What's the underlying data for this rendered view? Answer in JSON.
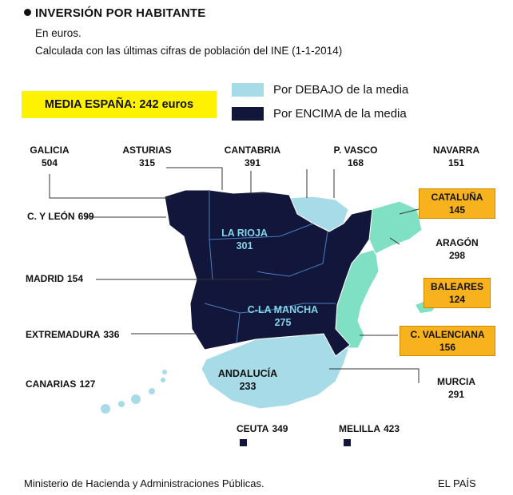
{
  "title": "INVERSIÓN POR HABITANTE",
  "subtitle1": "En euros.",
  "subtitle2": "Calculada con las últimas cifras de población del INE (1-1-2014)",
  "media": {
    "label": "MEDIA ESPAÑA:",
    "value": "242 euros"
  },
  "legend": [
    {
      "label": "Por DEBAJO de la media",
      "color": "#a8dbe8"
    },
    {
      "label": "Por ENCIMA de la media",
      "color": "#12163a"
    }
  ],
  "colors": {
    "below": "#a8dbe8",
    "above": "#12163a",
    "highlight": "#7fe0c4",
    "badge": "#f7b21e"
  },
  "regions": {
    "galicia": {
      "name": "GALICIA",
      "value": "504"
    },
    "asturias": {
      "name": "ASTURIAS",
      "value": "315"
    },
    "cantabria": {
      "name": "CANTABRIA",
      "value": "391"
    },
    "pvasco": {
      "name": "P. VASCO",
      "value": "168"
    },
    "navarra": {
      "name": "NAVARRA",
      "value": "151"
    },
    "cataluna": {
      "name": "CATALUÑA",
      "value": "145"
    },
    "cyleon": {
      "name": "C. Y LEÓN",
      "value": "699"
    },
    "aragon": {
      "name": "ARAGÓN",
      "value": "298"
    },
    "larioja": {
      "name": "LA RIOJA",
      "value": "301"
    },
    "madrid": {
      "name": "MADRID",
      "value": "154"
    },
    "baleares": {
      "name": "BALEARES",
      "value": "124"
    },
    "clamancha": {
      "name": "C-LA MANCHA",
      "value": "275"
    },
    "extremadura": {
      "name": "EXTREMADURA",
      "value": "336"
    },
    "cvalenciana": {
      "name": "C. VALENCIANA",
      "value": "156"
    },
    "andalucia": {
      "name": "ANDALUCÍA",
      "value": "233"
    },
    "murcia": {
      "name": "MURCIA",
      "value": "291"
    },
    "canarias": {
      "name": "CANARIAS",
      "value": "127"
    },
    "ceuta": {
      "name": "CEUTA",
      "value": "349"
    },
    "melilla": {
      "name": "MELILLA",
      "value": "423"
    }
  },
  "source": "Ministerio de Hacienda y Administraciones Públicas.",
  "publisher": "EL PAÍS"
}
